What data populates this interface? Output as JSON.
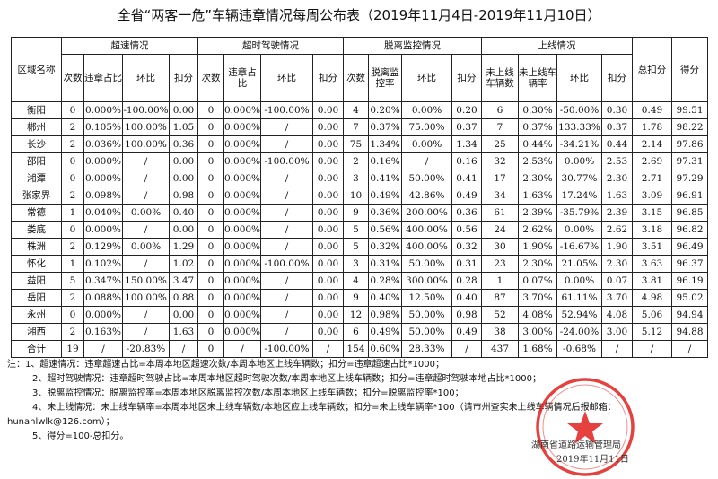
{
  "title": "全省“两客一危”车辆违章情况每周公布表（2019年11月4日-2019年11月10日）",
  "headers": {
    "region": "区域名称",
    "speeding": "超速情况",
    "overtime": "超时驾驶情况",
    "offline_monitor": "脱离监控情况",
    "online": "上线情况",
    "total_deduction": "总扣分",
    "score": "得分",
    "count": "次数",
    "violation_ratio": "违章占比",
    "violation_ratio2": "违章占比",
    "mom": "环比",
    "deduction": "扣分",
    "offline_rate": "脱离监控率",
    "not_online_count": "未上线车辆数",
    "not_online_rate": "未上线车辆率"
  },
  "rows": [
    [
      "衡阳",
      "0",
      "0.000%",
      "-100.00%",
      "0.00",
      "0",
      "0.000%",
      "-100.00%",
      "0.00",
      "4",
      "0.20%",
      "0.00%",
      "0.20",
      "6",
      "0.30%",
      "-50.00%",
      "0.30",
      "0.49",
      "99.51"
    ],
    [
      "郴州",
      "2",
      "0.105%",
      "100.00%",
      "1.05",
      "0",
      "0.000%",
      "/",
      "0.00",
      "7",
      "0.37%",
      "75.00%",
      "0.37",
      "7",
      "0.37%",
      "133.33%",
      "0.37",
      "1.78",
      "98.22"
    ],
    [
      "长沙",
      "2",
      "0.036%",
      "100.00%",
      "0.36",
      "0",
      "0.000%",
      "/",
      "0.00",
      "75",
      "1.34%",
      "0.00%",
      "1.34",
      "25",
      "0.44%",
      "-34.21%",
      "0.44",
      "2.14",
      "97.86"
    ],
    [
      "邵阳",
      "0",
      "0.000%",
      "/",
      "0.00",
      "0",
      "0.000%",
      "-100.00%",
      "0.00",
      "2",
      "0.16%",
      "/",
      "0.16",
      "32",
      "2.53%",
      "0.00%",
      "2.53",
      "2.69",
      "97.31"
    ],
    [
      "湘潭",
      "0",
      "0.000%",
      "/",
      "0.00",
      "0",
      "0.000%",
      "/",
      "0.00",
      "3",
      "0.41%",
      "50.00%",
      "0.41",
      "17",
      "2.30%",
      "30.77%",
      "2.30",
      "2.71",
      "97.29"
    ],
    [
      "张家界",
      "2",
      "0.098%",
      "/",
      "0.98",
      "0",
      "0.000%",
      "/",
      "0.00",
      "10",
      "0.49%",
      "42.86%",
      "0.49",
      "34",
      "1.63%",
      "17.24%",
      "1.63",
      "3.09",
      "96.91"
    ],
    [
      "常德",
      "1",
      "0.040%",
      "0.00%",
      "0.40",
      "0",
      "0.000%",
      "/",
      "0.00",
      "9",
      "0.36%",
      "200.00%",
      "0.36",
      "61",
      "2.39%",
      "-35.79%",
      "2.39",
      "3.15",
      "96.85"
    ],
    [
      "娄底",
      "0",
      "0.000%",
      "/",
      "0.00",
      "0",
      "0.000%",
      "/",
      "0.00",
      "5",
      "0.56%",
      "400.00%",
      "0.56",
      "24",
      "2.62%",
      "0.00%",
      "2.62",
      "3.18",
      "96.82"
    ],
    [
      "株洲",
      "2",
      "0.129%",
      "0.00%",
      "1.29",
      "0",
      "0.000%",
      "/",
      "0.00",
      "5",
      "0.32%",
      "400.00%",
      "0.32",
      "30",
      "1.90%",
      "-16.67%",
      "1.90",
      "3.51",
      "96.49"
    ],
    [
      "怀化",
      "1",
      "0.102%",
      "/",
      "1.02",
      "0",
      "0.000%",
      "-100.00%",
      "0.00",
      "3",
      "0.31%",
      "50.00%",
      "0.31",
      "23",
      "2.30%",
      "21.05%",
      "2.30",
      "3.63",
      "96.37"
    ],
    [
      "益阳",
      "5",
      "0.347%",
      "150.00%",
      "3.47",
      "0",
      "0.000%",
      "/",
      "0.00",
      "4",
      "0.28%",
      "300.00%",
      "0.28",
      "1",
      "0.07%",
      "0.00%",
      "0.07",
      "3.81",
      "96.19"
    ],
    [
      "岳阳",
      "2",
      "0.088%",
      "100.00%",
      "0.88",
      "0",
      "0.000%",
      "/",
      "0.00",
      "9",
      "0.40%",
      "12.50%",
      "0.40",
      "87",
      "3.70%",
      "61.11%",
      "3.70",
      "4.98",
      "95.02"
    ],
    [
      "永州",
      "0",
      "0.000%",
      "/",
      "0.00",
      "0",
      "0.000%",
      "/",
      "0.00",
      "12",
      "0.98%",
      "50.00%",
      "0.98",
      "52",
      "4.08%",
      "52.94%",
      "4.08",
      "5.06",
      "94.94"
    ],
    [
      "湘西",
      "2",
      "0.163%",
      "/",
      "1.63",
      "0",
      "0.000%",
      "/",
      "0.00",
      "6",
      "0.49%",
      "50.00%",
      "0.49",
      "38",
      "3.00%",
      "-24.00%",
      "3.00",
      "5.12",
      "94.88"
    ],
    [
      "合计",
      "19",
      "/",
      "-20.83%",
      "/",
      "0",
      "/",
      "-100.00%",
      "/",
      "154",
      "0.60%",
      "28.33%",
      "/",
      "437",
      "1.68%",
      "-0.68%",
      "/",
      "/",
      "/"
    ]
  ],
  "notes": [
    "注：1、超速情况：违章超速占比=本周本地区超速次数/本周本地区上线车辆数；扣分=违章超速占比*1000；",
    "2、超时驾驶情况：违章超时驾驶占比=本周本地区超时驾驶次数/本周本地区上线车辆数；扣分=违章超时驾驶本地占比*1000；",
    "3、脱离监控情况：脱离监控率=本周本地区脱离监控次数/本周本地区上线车辆数；扣分=脱离监控率*100；",
    "4、未上线情况：未上线车辆率=本周本地区未上线车辆数/本地区应上线车辆数；扣分=未上线车辆率*100（请市州查实未上线车辆情况后报邮箱：",
    "hunanlwlk@126.com）；",
    "5、得分=100-总扣分。"
  ],
  "signer": "湖南省道路运输管理局",
  "sign_date": "2019年11月11日",
  "stamp": {
    "text": "湖南省道路运输管理局",
    "color": "#e0201c"
  }
}
